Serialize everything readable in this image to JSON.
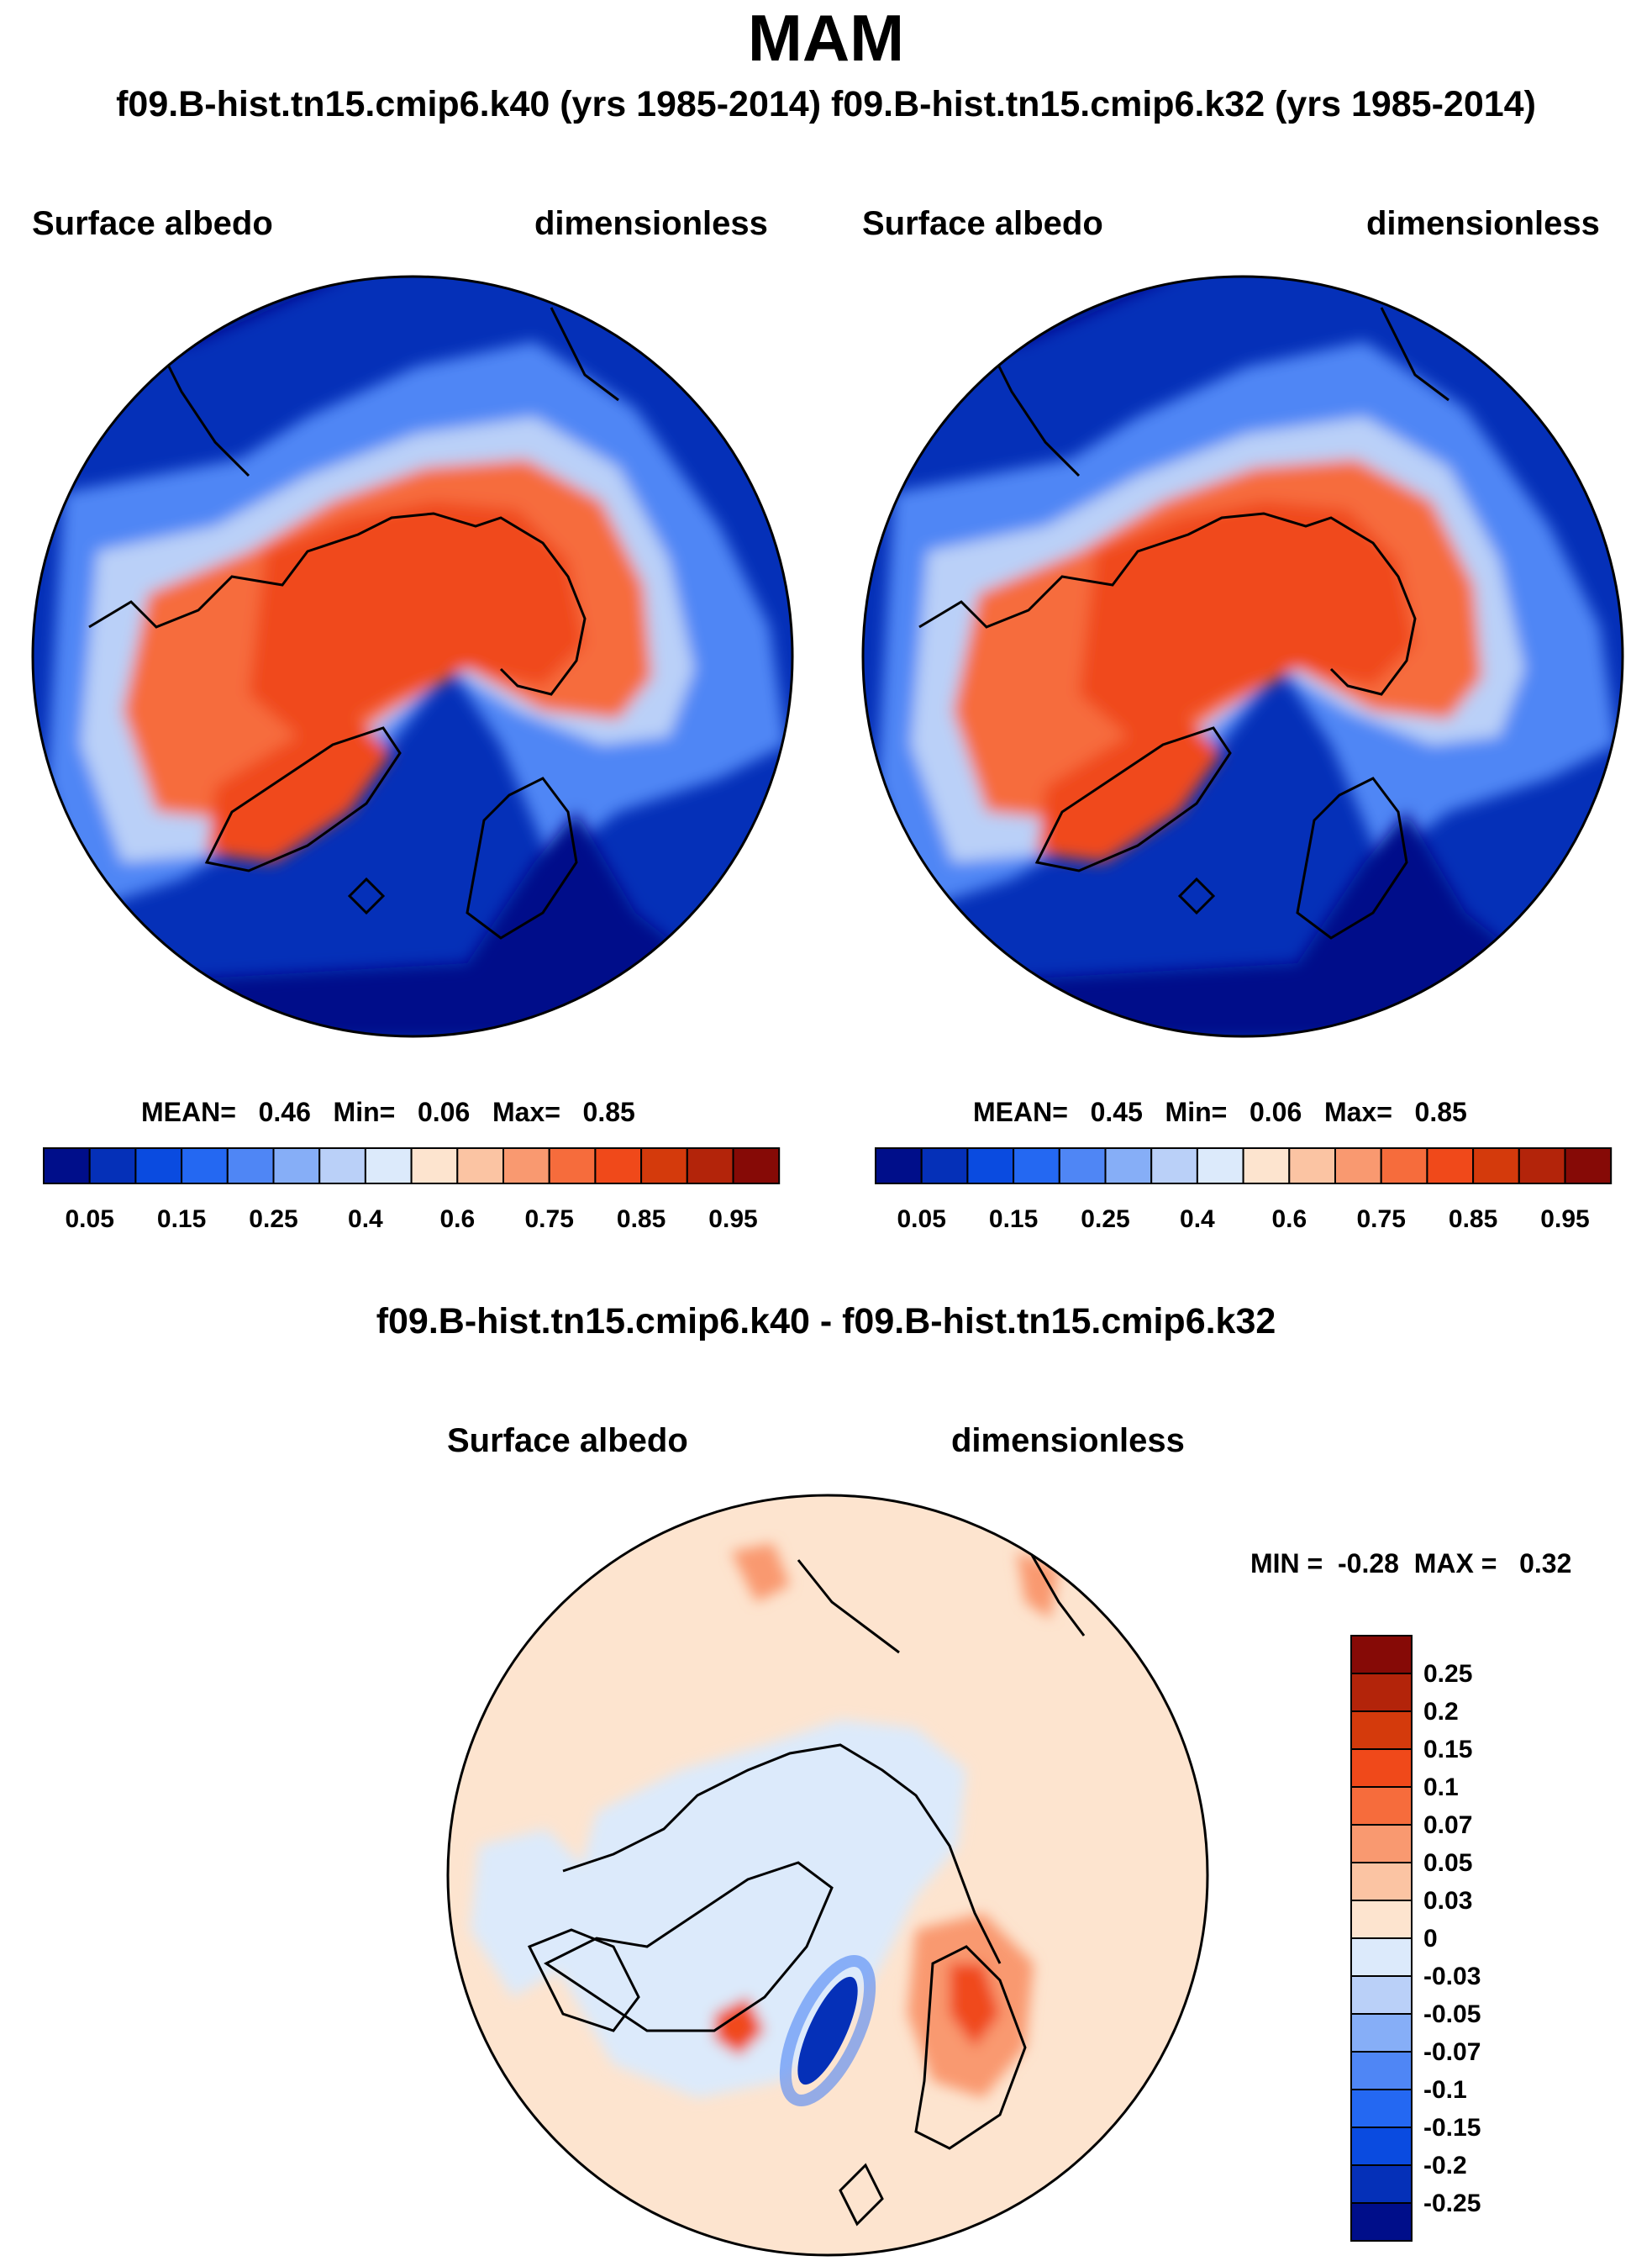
{
  "title": "MAM",
  "subtitle_left": "f09.B-hist.tn15.cmip6.k40 (yrs 1985-2014)",
  "subtitle_right": "f09.B-hist.tn15.cmip6.k32 (yrs 1985-2014)",
  "panels": [
    {
      "variable": "Surface albedo",
      "units": "dimensionless",
      "stats": {
        "mean_label": "MEAN=",
        "mean": "0.46",
        "min_label": "Min=",
        "min": "0.06",
        "max_label": "Max=",
        "max": "0.85"
      }
    },
    {
      "variable": "Surface albedo",
      "units": "dimensionless",
      "stats": {
        "mean_label": "MEAN=",
        "mean": "0.45",
        "min_label": "Min=",
        "min": "0.06",
        "max_label": "Max=",
        "max": "0.85"
      }
    }
  ],
  "colorbar_main": {
    "labels": [
      "0.05",
      "0.15",
      "0.25",
      "0.4",
      "0.6",
      "0.75",
      "0.85",
      "0.95"
    ],
    "colors": [
      "#000e8a",
      "#0530b8",
      "#0a4be0",
      "#2468f2",
      "#4f86f5",
      "#86aef7",
      "#bad0f8",
      "#dceafb",
      "#fde4cf",
      "#fbc4a3",
      "#f99970",
      "#f66c3c",
      "#f0491a",
      "#d43a0c",
      "#b3240a",
      "#860a06"
    ]
  },
  "diff_title": "f09.B-hist.tn15.cmip6.k40 - f09.B-hist.tn15.cmip6.k32",
  "diff_panel": {
    "variable": "Surface albedo",
    "units": "dimensionless",
    "min_label": "MIN =",
    "min": "-0.28",
    "max_label": "MAX =",
    "max": "0.32"
  },
  "colorbar_diff": {
    "labels": [
      "0.25",
      "0.2",
      "0.15",
      "0.1",
      "0.07",
      "0.05",
      "0.03",
      "0",
      "-0.03",
      "-0.05",
      "-0.07",
      "-0.1",
      "-0.15",
      "-0.2",
      "-0.25"
    ],
    "colors": [
      "#860a06",
      "#b3240a",
      "#d43a0c",
      "#f0491a",
      "#f66c3c",
      "#f99970",
      "#fbc4a3",
      "#fde4cf",
      "#dceafb",
      "#bad0f8",
      "#86aef7",
      "#4f86f5",
      "#2468f2",
      "#0a4be0",
      "#0530b8",
      "#000e8a"
    ]
  }
}
